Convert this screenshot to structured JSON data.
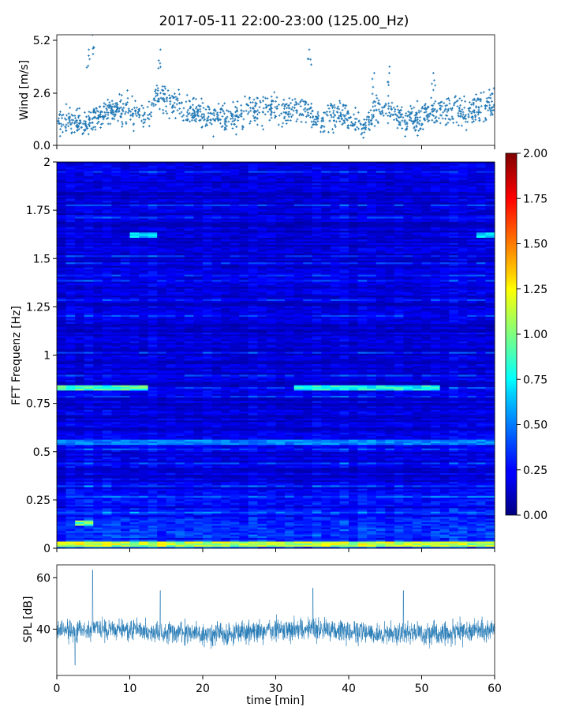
{
  "chart_data": [
    {
      "type": "scatter",
      "title": "2017-05-11 22:00-23:00 (125.00_Hz)",
      "ylabel": "Wind [m/s]",
      "xlim": [
        0,
        60
      ],
      "ylim": [
        0,
        5.2
      ],
      "yticks": [
        "0.0",
        "2.6",
        "5.2"
      ],
      "color": "#1f77b4",
      "marker": "+",
      "envelope": {
        "description_key": "wind speed baseline by minute",
        "x": [
          0,
          2,
          4,
          5,
          6,
          8,
          10,
          12,
          14,
          16,
          18,
          20,
          22,
          24,
          26,
          28,
          30,
          32,
          34,
          36,
          38,
          40,
          42,
          44,
          46,
          48,
          50,
          52,
          54,
          56,
          58,
          60
        ],
        "y": [
          1.2,
          1.1,
          1.0,
          1.2,
          1.4,
          1.6,
          1.7,
          1.2,
          2.4,
          2.0,
          1.6,
          1.5,
          1.3,
          1.3,
          1.5,
          1.8,
          1.7,
          1.5,
          1.7,
          1.0,
          1.4,
          1.3,
          0.8,
          1.7,
          1.6,
          1.1,
          1.3,
          1.6,
          1.7,
          1.5,
          1.6,
          2.0
        ]
      },
      "peaks": [
        {
          "x": 4.9,
          "y": 5.2
        },
        {
          "x": 4.4,
          "y": 4.5
        },
        {
          "x": 14.2,
          "y": 4.5
        },
        {
          "x": 34.6,
          "y": 4.5
        },
        {
          "x": 43.5,
          "y": 3.4
        },
        {
          "x": 45.6,
          "y": 3.7
        },
        {
          "x": 51.6,
          "y": 3.4
        }
      ]
    },
    {
      "type": "heatmap",
      "ylabel": "FFT Frequenz [Hz]",
      "xlim": [
        0,
        60
      ],
      "ylim": [
        0,
        2
      ],
      "yticks": [
        "0",
        "0.25",
        "0.5",
        "0.75",
        "1",
        "1.25",
        "1.5",
        "1.75",
        "2"
      ],
      "colormap": "jet",
      "colorbar": {
        "min": 0,
        "max": 2,
        "ticks": [
          "0.00",
          "0.25",
          "0.50",
          "0.75",
          "1.00",
          "1.25",
          "1.50",
          "1.75",
          "2.00"
        ]
      },
      "bands": [
        {
          "freq": 0.83,
          "value": 0.95,
          "x_from": 0,
          "x_to": 12
        },
        {
          "freq": 0.83,
          "value": 0.85,
          "x_from": 32,
          "x_to": 52
        },
        {
          "freq": 0.55,
          "value": 0.55,
          "x_from": 0,
          "x_to": 60
        },
        {
          "freq": 0.02,
          "value": 1.2,
          "x_from": 0,
          "x_to": 60
        },
        {
          "freq": 0.13,
          "value": 1.0,
          "x_from": 2,
          "x_to": 5
        },
        {
          "freq": 1.62,
          "value": 0.7,
          "x_from": 10,
          "x_to": 14
        },
        {
          "freq": 1.62,
          "value": 0.7,
          "x_from": 57,
          "x_to": 60
        }
      ]
    },
    {
      "type": "line",
      "ylabel": "SPL [dB]",
      "xlabel": "time [min]",
      "xlim": [
        0,
        60
      ],
      "ylim": [
        22,
        65
      ],
      "yticks": [
        40,
        60
      ],
      "xticks": [
        0,
        10,
        20,
        30,
        40,
        50,
        60
      ],
      "color": "#1f77b4",
      "mean_db": 39,
      "spikes": [
        {
          "x": 4.9,
          "y": 63
        },
        {
          "x": 14.2,
          "y": 55
        },
        {
          "x": 35.1,
          "y": 56
        },
        {
          "x": 2.5,
          "y": 26
        },
        {
          "x": 47.5,
          "y": 55
        }
      ]
    }
  ]
}
